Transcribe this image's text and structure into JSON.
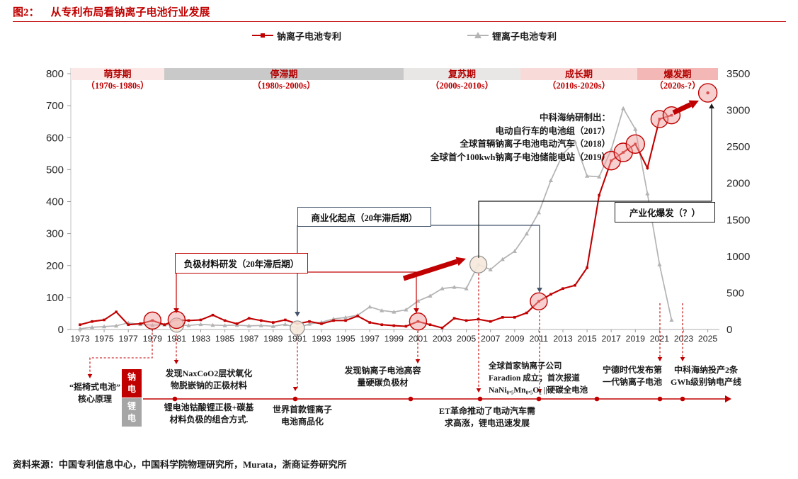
{
  "title": {
    "prefix": "图2：",
    "text": "从专利布局看钠离子电池行业发展"
  },
  "legend": {
    "sodium": "钠离子电池专利",
    "lithium": "锂离子电池专利"
  },
  "phases": [
    {
      "name": "萌芽期",
      "years": "（1970s-1980s）"
    },
    {
      "name": "停滞期",
      "years": "（1980s-2000s）"
    },
    {
      "name": "复苏期",
      "years": "（2000s-2010s）"
    },
    {
      "name": "成长期",
      "years": "（2010s-2020s）"
    },
    {
      "name": "爆发期",
      "years": "（2020s-?）"
    }
  ],
  "annotations": {
    "neg_material": "负极材料研发（20年滞后期）",
    "commercial_start": "商业化起点（20年滞后期）",
    "industrial_burst": "产业化爆发（？）",
    "haina_achievements": "中科海纳研制出：\n电动自行车的电池组（2017）\n全球首辆钠离子电池电动汽车（2018）\n全球首个100kwh钠离子电池储能电站（2019）"
  },
  "timeline": {
    "rocking_chair": "“摇椅式电池”\n核心原理",
    "na_badge": "钠电",
    "li_badge": "锂电",
    "na_cathode": "发现NaxCoO2层状氧化\n物脱嵌钠的正极材料",
    "li_combo": "锂电池钴酸锂正极+碳基\n材料负极的组合方式.",
    "hard_carbon": "发现钠离子电池高容\n量硬碳负极材",
    "li_commercial": "世界首款锂离子\n电池商品化",
    "et_revolution": "ET革命推动了电动汽车需\n求高涨，锂电迅速发展",
    "faradion": "全球首家钠离子公司\nFaradion 成立；首次报道\nNaNi₀.₅Mn₀.₅O₂ ||硬碳全电池",
    "catl": "宁德时代发布第\n一代钠离子电池",
    "haina_production": "中科海纳投产2条\nGWh级别钠电产线"
  },
  "source": "资料来源：中国专利信息中心，中国科学院物理研究所，Murata，浙商证券研究所",
  "colors": {
    "accent_red": "#c00000",
    "lithium_gray": "#b3b3b3",
    "navy": "#44546a",
    "highlight_fill": "#f0a09e",
    "beige_fill": "#f6e9db"
  },
  "chart_data": {
    "type": "line",
    "title": "从专利布局看钠离子电池行业发展",
    "years": [
      1973,
      1974,
      1975,
      1976,
      1977,
      1978,
      1979,
      1980,
      1981,
      1982,
      1983,
      1984,
      1985,
      1986,
      1987,
      1988,
      1989,
      1990,
      1991,
      1992,
      1993,
      1994,
      1995,
      1996,
      1997,
      1998,
      1999,
      2000,
      2001,
      2002,
      2003,
      2004,
      2005,
      2006,
      2007,
      2008,
      2009,
      2010,
      2011,
      2012,
      2013,
      2014,
      2015,
      2016,
      2017,
      2018,
      2019,
      2020,
      2021,
      2022
    ],
    "x_tick_labels": [
      "1973",
      "1975",
      "1977",
      "1979",
      "1981",
      "1983",
      "1985",
      "1987",
      "1989",
      "1991",
      "1993",
      "1995",
      "1997",
      "1999",
      "2001",
      "2003",
      "2005",
      "2007",
      "2009",
      "2011",
      "2013",
      "2015",
      "2017",
      "2019",
      "2021",
      "2023",
      "2025"
    ],
    "left_axis": {
      "range": [
        0,
        800
      ],
      "ticks": [
        800,
        700,
        600,
        500,
        400,
        300,
        200,
        100,
        0
      ]
    },
    "right_axis": {
      "range": [
        0,
        3500
      ],
      "ticks": [
        3500,
        3000,
        2500,
        2000,
        1500,
        1000,
        500,
        0
      ]
    },
    "legend_position": "top",
    "grid": false,
    "series": [
      {
        "name": "钠离子电池专利",
        "axis": "left",
        "color": "#c00000",
        "marker": "square",
        "values": [
          15,
          25,
          30,
          55,
          15,
          18,
          28,
          15,
          30,
          28,
          30,
          45,
          28,
          18,
          35,
          28,
          22,
          30,
          18,
          25,
          18,
          28,
          28,
          42,
          22,
          15,
          12,
          10,
          25,
          15,
          5,
          35,
          28,
          32,
          25,
          38,
          38,
          52,
          88,
          110,
          128,
          138,
          193,
          420,
          528,
          554,
          580,
          505,
          658,
          670
        ],
        "future_point": {
          "year": 2025,
          "value": 740
        },
        "highlighted_years": [
          1979,
          1981,
          2001,
          2011,
          2017,
          2018,
          2019,
          2021,
          2022,
          2025
        ]
      },
      {
        "name": "锂离子电池专利",
        "axis": "right",
        "color": "#b3b3b3",
        "marker": "triangle",
        "values": [
          10,
          30,
          40,
          50,
          90,
          70,
          60,
          65,
          60,
          55,
          70,
          60,
          55,
          60,
          50,
          55,
          45,
          70,
          20,
          75,
          100,
          145,
          165,
          195,
          310,
          260,
          240,
          270,
          390,
          460,
          560,
          580,
          560,
          890,
          820,
          960,
          1070,
          1310,
          1600,
          2040,
          2400,
          2570,
          2100,
          2090,
          2460,
          3025,
          2740,
          1860,
          890,
          130
        ],
        "highlighted_years": [
          1981,
          1991,
          2006
        ]
      }
    ]
  }
}
